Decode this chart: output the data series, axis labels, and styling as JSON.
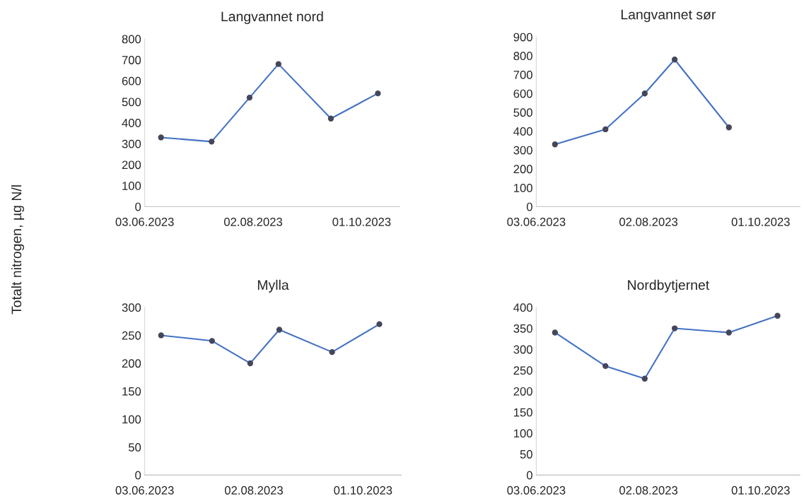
{
  "chart_data": [
    {
      "type": "line",
      "title": "Langvannet nord",
      "ylabel": "Totalt nitrogen, µg N/l",
      "marker": "circle",
      "line_style": "solid",
      "x": [
        "2023-06-12",
        "2023-07-10",
        "2023-07-31",
        "2023-08-16",
        "2023-09-14",
        "2023-10-10"
      ],
      "series": [
        {
          "color": "#4472c4",
          "values": [
            330,
            310,
            520,
            680,
            420,
            540
          ]
        }
      ],
      "xlim": [
        "2023-06-03",
        "2023-10-22"
      ],
      "xticks": [
        {
          "value": "2023-06-03",
          "label": "03.06.2023"
        },
        {
          "value": "2023-08-02",
          "label": "02.08.2023"
        },
        {
          "value": "2023-10-01",
          "label": "01.10.2023"
        }
      ],
      "ylim": [
        0,
        800
      ],
      "yticks": [
        0,
        100,
        200,
        300,
        400,
        500,
        600,
        700,
        800
      ]
    },
    {
      "type": "line",
      "title": "Langvannet sør",
      "marker": "circle",
      "line_style": "solid",
      "x": [
        "2023-06-13",
        "2023-07-10",
        "2023-07-31",
        "2023-08-16",
        "2023-09-14"
      ],
      "series": [
        {
          "color": "#4472c4",
          "values": [
            330,
            410,
            600,
            780,
            420
          ]
        }
      ],
      "xlim": [
        "2023-06-03",
        "2023-10-22"
      ],
      "xticks": [
        {
          "value": "2023-06-03",
          "label": "03.06.2023"
        },
        {
          "value": "2023-08-02",
          "label": "02.08.2023"
        },
        {
          "value": "2023-10-01",
          "label": "01.10.2023"
        }
      ],
      "ylim": [
        0,
        900
      ],
      "yticks": [
        0,
        100,
        200,
        300,
        400,
        500,
        600,
        700,
        800,
        900
      ]
    },
    {
      "type": "line",
      "title": "Mylla",
      "marker": "circle",
      "line_style": "solid",
      "x": [
        "2023-06-12",
        "2023-07-10",
        "2023-07-31",
        "2023-08-16",
        "2023-09-14",
        "2023-10-10"
      ],
      "series": [
        {
          "color": "#4472c4",
          "values": [
            250,
            240,
            200,
            260,
            220,
            270
          ]
        }
      ],
      "xlim": [
        "2023-06-03",
        "2023-10-22"
      ],
      "xticks": [
        {
          "value": "2023-06-03",
          "label": "03.06.2023"
        },
        {
          "value": "2023-08-02",
          "label": "02.08.2023"
        },
        {
          "value": "2023-10-01",
          "label": "01.10.2023"
        }
      ],
      "ylim": [
        0,
        300
      ],
      "yticks": [
        0,
        50,
        100,
        150,
        200,
        250,
        300
      ]
    },
    {
      "type": "line",
      "title": "Nordbytjernet",
      "marker": "circle",
      "line_style": "solid",
      "x": [
        "2023-06-13",
        "2023-07-10",
        "2023-07-31",
        "2023-08-16",
        "2023-09-14",
        "2023-10-10"
      ],
      "series": [
        {
          "color": "#4472c4",
          "values": [
            340,
            260,
            230,
            350,
            340,
            380
          ]
        }
      ],
      "xlim": [
        "2023-06-03",
        "2023-10-22"
      ],
      "xticks": [
        {
          "value": "2023-06-03",
          "label": "03.06.2023"
        },
        {
          "value": "2023-08-02",
          "label": "02.08.2023"
        },
        {
          "value": "2023-10-01",
          "label": "01.10.2023"
        }
      ],
      "ylim": [
        0,
        400
      ],
      "yticks": [
        0,
        50,
        100,
        150,
        200,
        250,
        300,
        350,
        400
      ]
    }
  ]
}
